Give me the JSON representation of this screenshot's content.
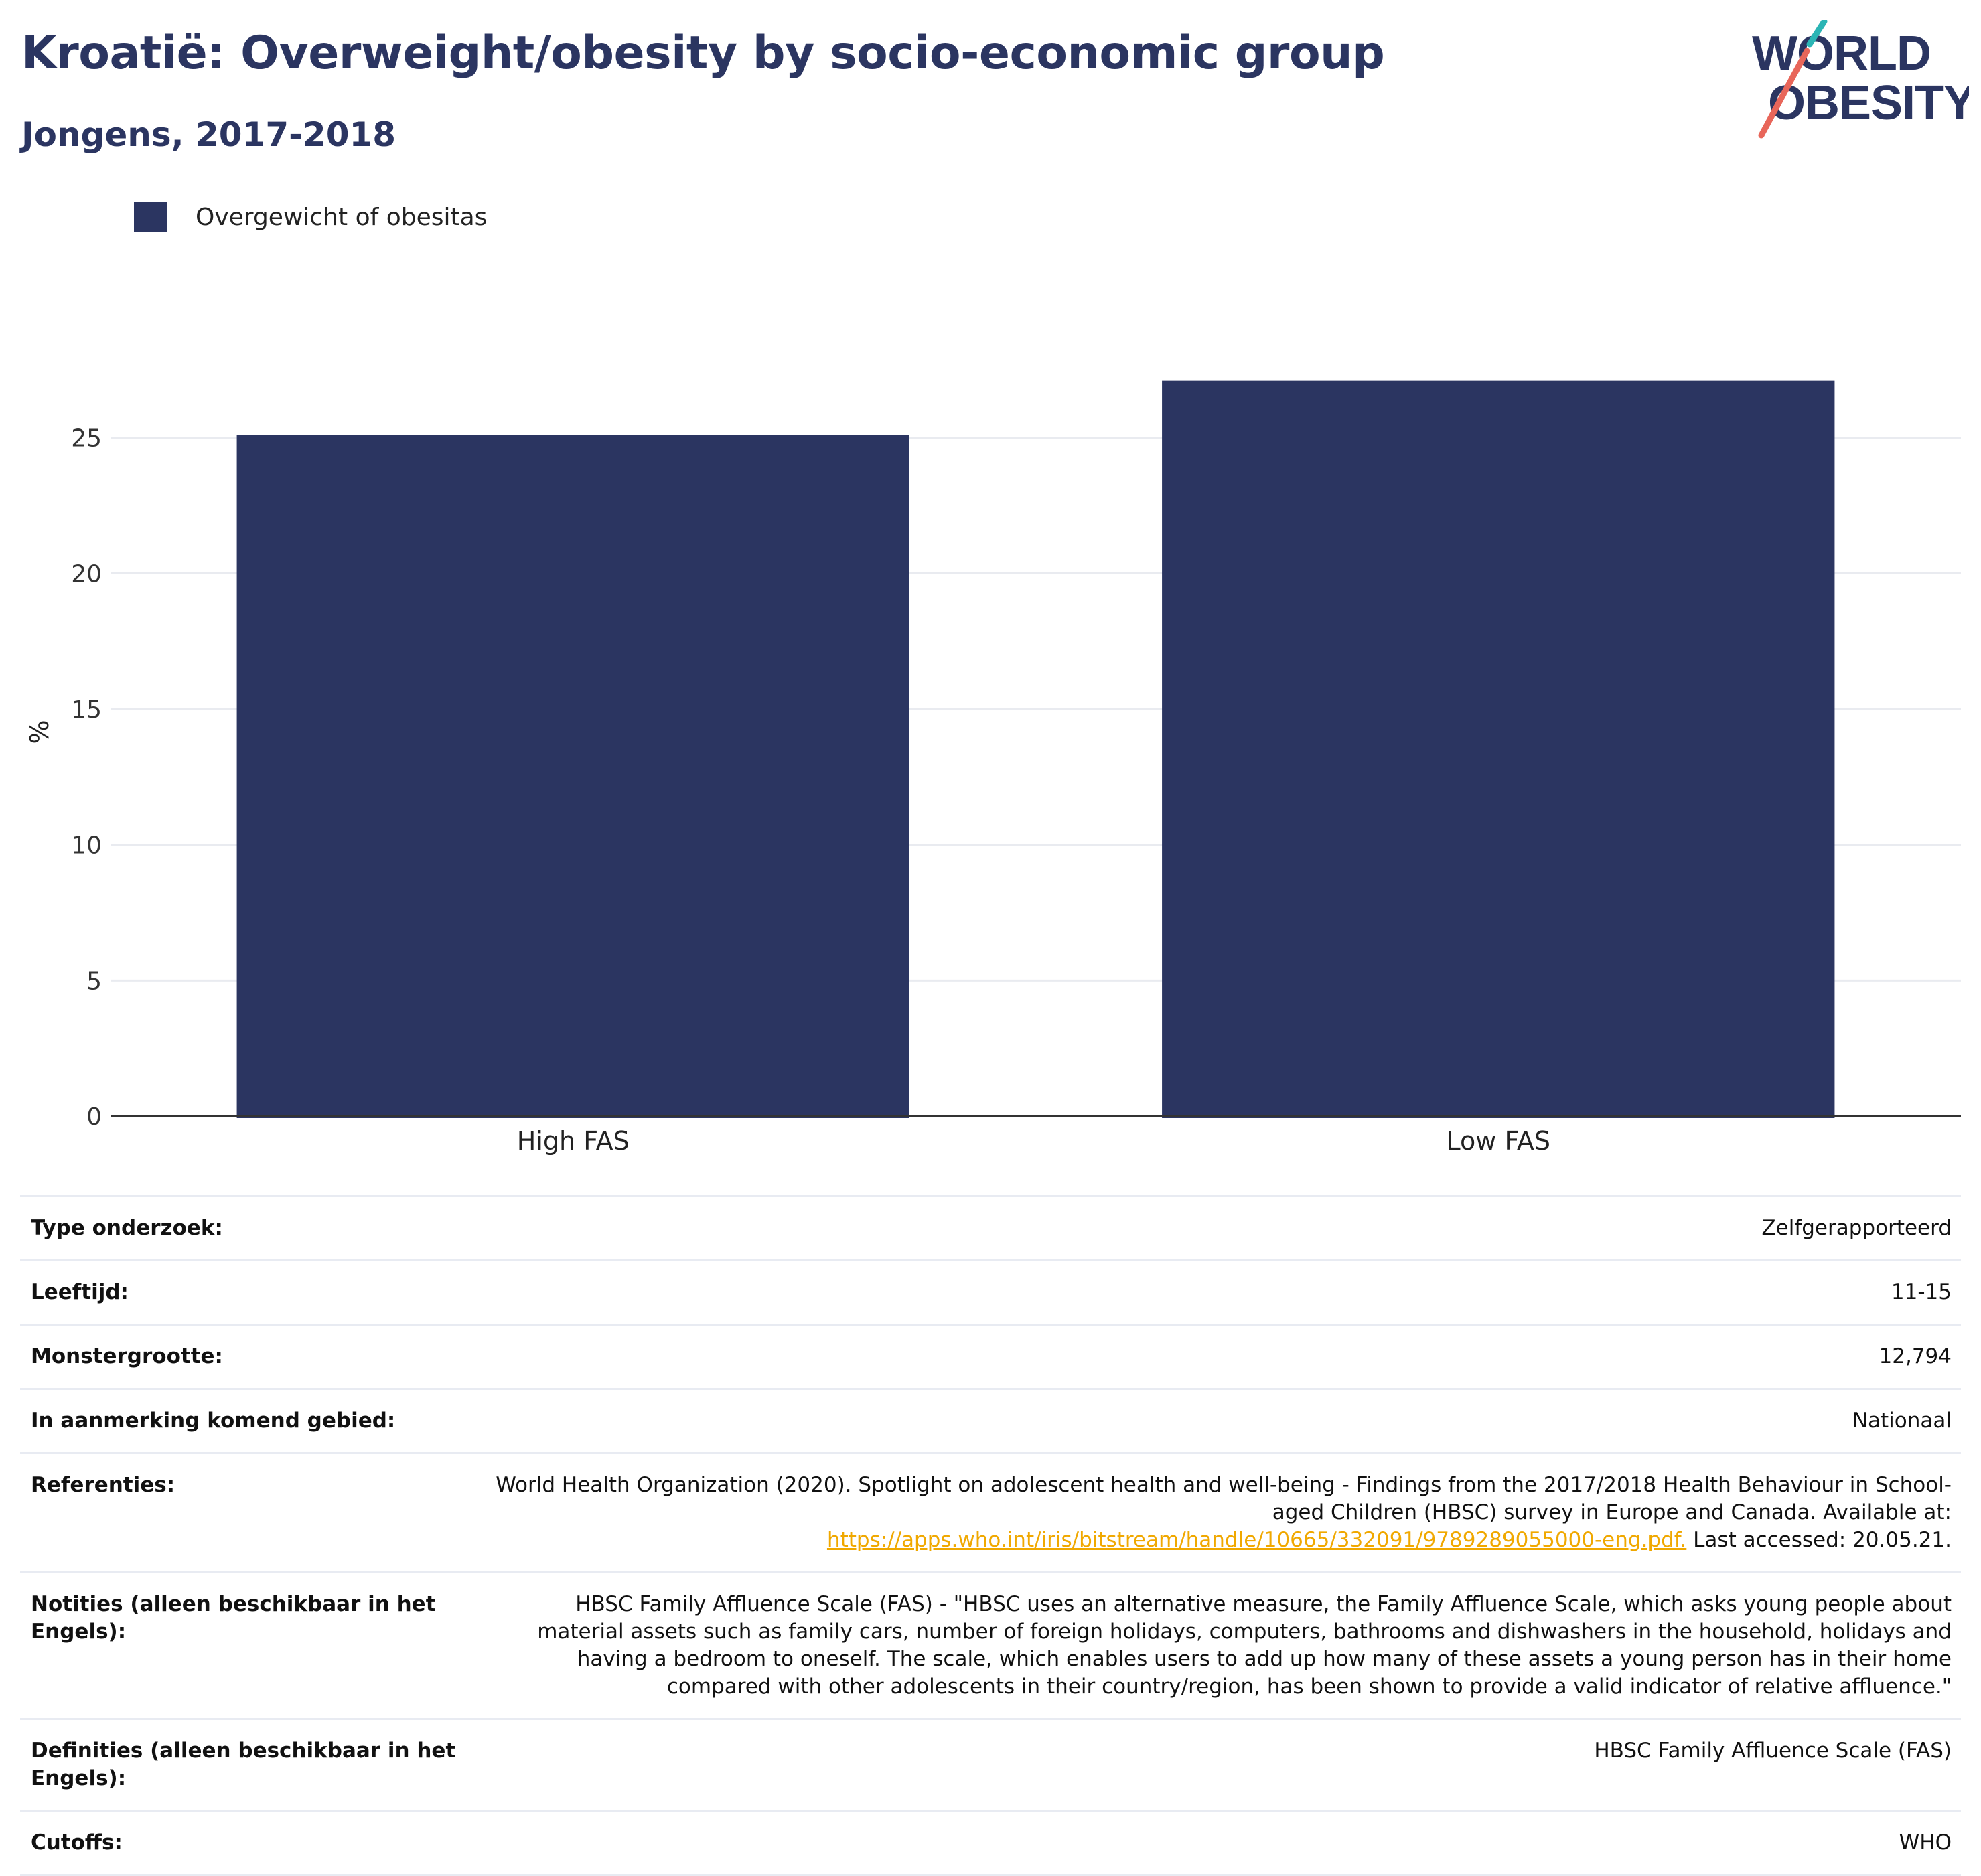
{
  "header": {
    "title": "Kroatië: Overweight/obesity by socio-economic group",
    "subtitle": "Jongens, 2017-2018"
  },
  "logo": {
    "line1": "WORLD",
    "line2": "OBESITY",
    "colors": {
      "text": "#2b3561",
      "slash_top": "#2bb5b5",
      "slash_bottom": "#e8665a"
    }
  },
  "legend": {
    "label": "Overgewicht of obesitas",
    "color": "#2b3561"
  },
  "chart_data": {
    "type": "bar",
    "categories": [
      "High FAS",
      "Low FAS"
    ],
    "series": [
      {
        "name": "Overgewicht of obesitas",
        "values": [
          25.1,
          27.1
        ],
        "color": "#2b3561"
      }
    ],
    "ylabel": "%",
    "xlabel": "",
    "ylim": [
      0,
      28.3
    ],
    "yticks": [
      0,
      5,
      10,
      15,
      20,
      25
    ],
    "grid": true,
    "legend_position": "top-left"
  },
  "info": {
    "rows": [
      {
        "label": "Type onderzoek:",
        "value": "Zelfgerapporteerd"
      },
      {
        "label": "Leeftijd:",
        "value": "11-15"
      },
      {
        "label": "Monstergrootte:",
        "value": "12,794"
      },
      {
        "label": "In aanmerking komend gebied:",
        "value": "Nationaal"
      },
      {
        "label": "Referenties:",
        "value_pre": "World Health Organization (2020). Spotlight on adolescent health and well-being - Findings from the 2017/2018 Health Behaviour in School-aged Children (HBSC) survey in Europe and Canada. Available at:",
        "link": "https://apps.who.int/iris/bitstream/handle/10665/332091/9789289055000-eng.pdf.",
        "value_post": "Last accessed: 20.05.21."
      },
      {
        "label": "Notities (alleen beschikbaar in het Engels):",
        "value": "HBSC Family Affluence Scale (FAS) - \"HBSC uses an alternative measure, the Family Affluence Scale, which asks young people about material assets such as family cars, number of foreign holidays, computers, bathrooms and dishwashers in the household, holidays and having a bedroom to oneself. The scale, which enables users to add up how many of these assets a young person has in their home compared with other adolescents in their country/region, has been shown to provide a valid indicator of relative affluence.\""
      },
      {
        "label": "Definities (alleen beschikbaar in het Engels):",
        "value": "HBSC Family Affluence Scale (FAS)"
      },
      {
        "label": "Cutoffs:",
        "value": "WHO"
      }
    ]
  }
}
